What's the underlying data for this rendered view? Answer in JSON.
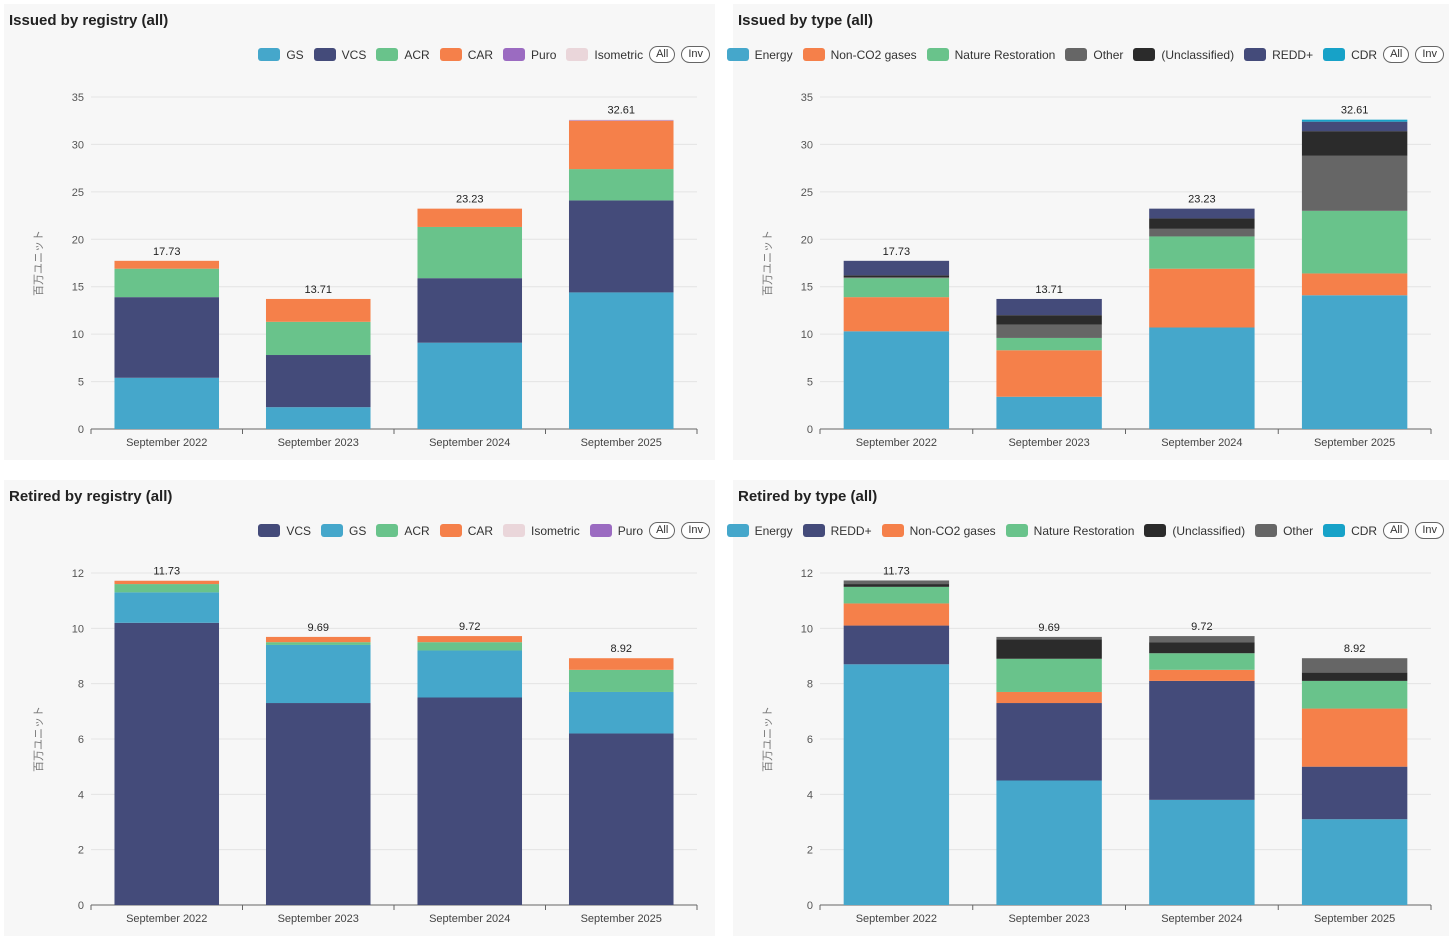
{
  "legend_buttons": {
    "all": "All",
    "inv": "Inv"
  },
  "chart_data": [
    {
      "type": "bar",
      "stacked": true,
      "title": "Issued by registry (all)",
      "ylabel": "百万ユニット",
      "ylim": [
        0,
        35
      ],
      "yticks": [
        0,
        5,
        10,
        15,
        20,
        25,
        30,
        35
      ],
      "categories": [
        "September 2022",
        "September 2023",
        "September 2024",
        "September 2025"
      ],
      "totals": [
        "17.73",
        "13.71",
        "23.23",
        "32.61"
      ],
      "legend_position": "top-right",
      "grid": true,
      "legend": [
        {
          "name": "GS",
          "color": "#45a7cb"
        },
        {
          "name": "VCS",
          "color": "#444b7a"
        },
        {
          "name": "ACR",
          "color": "#69c38b"
        },
        {
          "name": "CAR",
          "color": "#f5804a"
        },
        {
          "name": "Puro",
          "color": "#9b6bc1"
        },
        {
          "name": "Isometric",
          "color": "#ead6da"
        }
      ],
      "series": [
        {
          "name": "GS",
          "color": "#45a7cb",
          "values": [
            5.4,
            2.3,
            9.1,
            14.4
          ]
        },
        {
          "name": "VCS",
          "color": "#444b7a",
          "values": [
            8.5,
            5.5,
            6.8,
            9.7
          ]
        },
        {
          "name": "ACR",
          "color": "#69c38b",
          "values": [
            3.0,
            3.5,
            5.4,
            3.3
          ]
        },
        {
          "name": "CAR",
          "color": "#f5804a",
          "values": [
            0.83,
            2.41,
            1.93,
            5.1
          ]
        },
        {
          "name": "Puro",
          "color": "#9b6bc1",
          "values": [
            0,
            0,
            0,
            0.06
          ]
        },
        {
          "name": "Isometric",
          "color": "#ead6da",
          "values": [
            0,
            0,
            0,
            0.05
          ]
        }
      ]
    },
    {
      "type": "bar",
      "stacked": true,
      "title": "Issued by type (all)",
      "ylabel": "百万ユニット",
      "ylim": [
        0,
        35
      ],
      "yticks": [
        0,
        5,
        10,
        15,
        20,
        25,
        30,
        35
      ],
      "categories": [
        "September 2022",
        "September 2023",
        "September 2024",
        "September 2025"
      ],
      "totals": [
        "17.73",
        "13.71",
        "23.23",
        "32.61"
      ],
      "legend_position": "top-right",
      "grid": true,
      "legend": [
        {
          "name": "Energy",
          "color": "#45a7cb"
        },
        {
          "name": "Non-CO2 gases",
          "color": "#f5804a"
        },
        {
          "name": "Nature Restoration",
          "color": "#69c38b"
        },
        {
          "name": "Other",
          "color": "#666666"
        },
        {
          "name": "(Unclassified)",
          "color": "#2b2b2b"
        },
        {
          "name": "REDD+",
          "color": "#444b7a"
        },
        {
          "name": "CDR",
          "color": "#17a2c8"
        }
      ],
      "series": [
        {
          "name": "Energy",
          "color": "#45a7cb",
          "values": [
            10.3,
            3.4,
            10.7,
            14.1
          ]
        },
        {
          "name": "Non-CO2 gases",
          "color": "#f5804a",
          "values": [
            3.6,
            4.9,
            6.2,
            2.3
          ]
        },
        {
          "name": "Nature Restoration",
          "color": "#69c38b",
          "values": [
            2.0,
            1.3,
            3.4,
            6.6
          ]
        },
        {
          "name": "Other",
          "color": "#666666",
          "values": [
            0.1,
            1.4,
            0.8,
            5.8
          ]
        },
        {
          "name": "(Unclassified)",
          "color": "#2b2b2b",
          "values": [
            0.2,
            1.0,
            1.1,
            2.6
          ]
        },
        {
          "name": "REDD+",
          "color": "#444b7a",
          "values": [
            1.53,
            1.71,
            1.03,
            1.0
          ]
        },
        {
          "name": "CDR",
          "color": "#17a2c8",
          "values": [
            0,
            0,
            0,
            0.21
          ]
        }
      ]
    },
    {
      "type": "bar",
      "stacked": true,
      "title": "Retired by registry (all)",
      "ylabel": "百万ユニット",
      "ylim": [
        0,
        12
      ],
      "yticks": [
        0,
        2,
        4,
        6,
        8,
        10,
        12
      ],
      "categories": [
        "September 2022",
        "September 2023",
        "September 2024",
        "September 2025"
      ],
      "totals": [
        "11.73",
        "9.69",
        "9.72",
        "8.92"
      ],
      "legend_position": "top-right",
      "grid": true,
      "legend": [
        {
          "name": "VCS",
          "color": "#444b7a"
        },
        {
          "name": "GS",
          "color": "#45a7cb"
        },
        {
          "name": "ACR",
          "color": "#69c38b"
        },
        {
          "name": "CAR",
          "color": "#f5804a"
        },
        {
          "name": "Isometric",
          "color": "#ead6da"
        },
        {
          "name": "Puro",
          "color": "#9b6bc1"
        }
      ],
      "series": [
        {
          "name": "VCS",
          "color": "#444b7a",
          "values": [
            10.2,
            7.3,
            7.5,
            6.2
          ]
        },
        {
          "name": "GS",
          "color": "#45a7cb",
          "values": [
            1.1,
            2.1,
            1.7,
            1.5
          ]
        },
        {
          "name": "ACR",
          "color": "#69c38b",
          "values": [
            0.3,
            0.1,
            0.3,
            0.8
          ]
        },
        {
          "name": "CAR",
          "color": "#f5804a",
          "values": [
            0.12,
            0.19,
            0.22,
            0.42
          ]
        },
        {
          "name": "Isometric",
          "color": "#ead6da",
          "values": [
            0,
            0,
            0,
            0
          ]
        },
        {
          "name": "Puro",
          "color": "#9b6bc1",
          "values": [
            0,
            0,
            0,
            0
          ]
        }
      ]
    },
    {
      "type": "bar",
      "stacked": true,
      "title": "Retired by type (all)",
      "ylabel": "百万ユニット",
      "ylim": [
        0,
        12
      ],
      "yticks": [
        0,
        2,
        4,
        6,
        8,
        10,
        12
      ],
      "categories": [
        "September 2022",
        "September 2023",
        "September 2024",
        "September 2025"
      ],
      "totals": [
        "11.73",
        "9.69",
        "9.72",
        "8.92"
      ],
      "legend_position": "top-right",
      "grid": true,
      "legend": [
        {
          "name": "Energy",
          "color": "#45a7cb"
        },
        {
          "name": "REDD+",
          "color": "#444b7a"
        },
        {
          "name": "Non-CO2 gases",
          "color": "#f5804a"
        },
        {
          "name": "Nature Restoration",
          "color": "#69c38b"
        },
        {
          "name": "(Unclassified)",
          "color": "#2b2b2b"
        },
        {
          "name": "Other",
          "color": "#666666"
        },
        {
          "name": "CDR",
          "color": "#17a2c8"
        }
      ],
      "series": [
        {
          "name": "Energy",
          "color": "#45a7cb",
          "values": [
            8.7,
            4.5,
            3.8,
            3.1
          ]
        },
        {
          "name": "REDD+",
          "color": "#444b7a",
          "values": [
            1.4,
            2.8,
            4.3,
            1.9
          ]
        },
        {
          "name": "Non-CO2 gases",
          "color": "#f5804a",
          "values": [
            0.8,
            0.4,
            0.4,
            2.1
          ]
        },
        {
          "name": "Nature Restoration",
          "color": "#69c38b",
          "values": [
            0.6,
            1.2,
            0.6,
            1.0
          ]
        },
        {
          "name": "(Unclassified)",
          "color": "#2b2b2b",
          "values": [
            0.1,
            0.7,
            0.4,
            0.3
          ]
        },
        {
          "name": "Other",
          "color": "#666666",
          "values": [
            0.13,
            0.09,
            0.22,
            0.52
          ]
        },
        {
          "name": "CDR",
          "color": "#17a2c8",
          "values": [
            0,
            0,
            0,
            0
          ]
        }
      ]
    }
  ]
}
